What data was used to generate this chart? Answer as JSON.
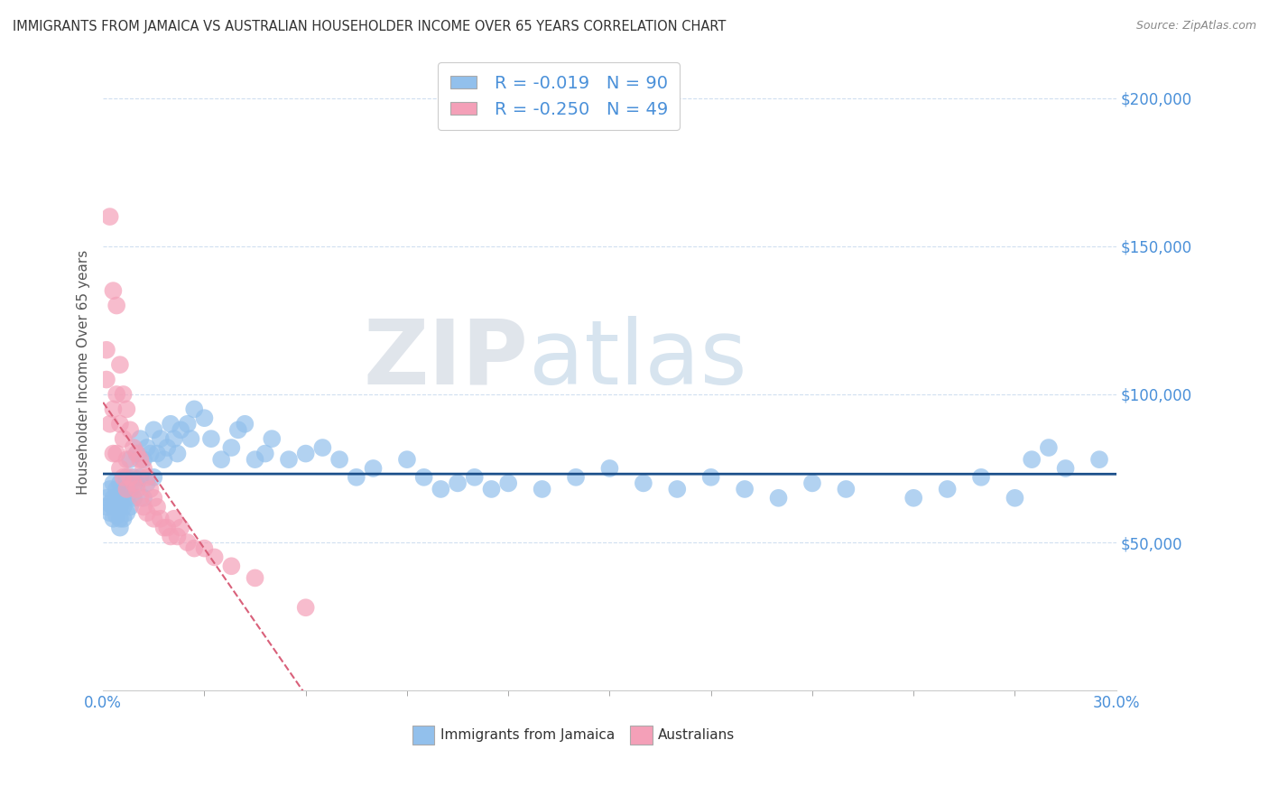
{
  "title": "IMMIGRANTS FROM JAMAICA VS AUSTRALIAN HOUSEHOLDER INCOME OVER 65 YEARS CORRELATION CHART",
  "source": "Source: ZipAtlas.com",
  "ylabel": "Householder Income Over 65 years",
  "watermark_zip": "ZIP",
  "watermark_atlas": "atlas",
  "legend_label1": "Immigrants from Jamaica",
  "legend_label2": "Australians",
  "legend_r1": "R = -0.019",
  "legend_n1": "N = 90",
  "legend_r2": "R = -0.250",
  "legend_n2": "N = 49",
  "blue_color": "#92C0EC",
  "pink_color": "#F4A0B8",
  "trendline_blue": "#1B4F8A",
  "trendline_pink": "#D9607A",
  "background_color": "#FFFFFF",
  "grid_color": "#D0DFF0",
  "yticks": [
    0,
    50000,
    100000,
    150000,
    200000
  ],
  "ytick_labels": [
    "",
    "$50,000",
    "$100,000",
    "$150,000",
    "$200,000"
  ],
  "xlim": [
    0.0,
    0.3
  ],
  "ylim": [
    0,
    215000
  ],
  "blue_x": [
    0.001,
    0.001,
    0.002,
    0.002,
    0.002,
    0.003,
    0.003,
    0.003,
    0.003,
    0.004,
    0.004,
    0.004,
    0.005,
    0.005,
    0.005,
    0.005,
    0.005,
    0.006,
    0.006,
    0.006,
    0.007,
    0.007,
    0.007,
    0.008,
    0.008,
    0.008,
    0.009,
    0.009,
    0.01,
    0.01,
    0.011,
    0.011,
    0.012,
    0.012,
    0.013,
    0.013,
    0.014,
    0.015,
    0.015,
    0.016,
    0.017,
    0.018,
    0.019,
    0.02,
    0.021,
    0.022,
    0.023,
    0.025,
    0.026,
    0.027,
    0.03,
    0.032,
    0.035,
    0.038,
    0.04,
    0.042,
    0.045,
    0.048,
    0.05,
    0.055,
    0.06,
    0.065,
    0.07,
    0.075,
    0.08,
    0.09,
    0.095,
    0.1,
    0.105,
    0.11,
    0.115,
    0.12,
    0.13,
    0.14,
    0.15,
    0.16,
    0.17,
    0.18,
    0.19,
    0.2,
    0.21,
    0.22,
    0.24,
    0.25,
    0.26,
    0.27,
    0.275,
    0.28,
    0.285,
    0.295
  ],
  "blue_y": [
    65000,
    62000,
    68000,
    63000,
    60000,
    70000,
    65000,
    62000,
    58000,
    68000,
    63000,
    59000,
    70000,
    65000,
    62000,
    58000,
    55000,
    67000,
    62000,
    58000,
    72000,
    65000,
    60000,
    78000,
    68000,
    62000,
    72000,
    65000,
    80000,
    70000,
    85000,
    72000,
    78000,
    65000,
    82000,
    70000,
    80000,
    88000,
    72000,
    80000,
    85000,
    78000,
    82000,
    90000,
    85000,
    80000,
    88000,
    90000,
    85000,
    95000,
    92000,
    85000,
    78000,
    82000,
    88000,
    90000,
    78000,
    80000,
    85000,
    78000,
    80000,
    82000,
    78000,
    72000,
    75000,
    78000,
    72000,
    68000,
    70000,
    72000,
    68000,
    70000,
    68000,
    72000,
    75000,
    70000,
    68000,
    72000,
    68000,
    65000,
    70000,
    68000,
    65000,
    68000,
    72000,
    65000,
    78000,
    82000,
    75000,
    78000
  ],
  "pink_x": [
    0.001,
    0.001,
    0.002,
    0.002,
    0.003,
    0.003,
    0.003,
    0.004,
    0.004,
    0.004,
    0.005,
    0.005,
    0.005,
    0.006,
    0.006,
    0.006,
    0.007,
    0.007,
    0.007,
    0.008,
    0.008,
    0.009,
    0.009,
    0.01,
    0.01,
    0.011,
    0.011,
    0.012,
    0.012,
    0.013,
    0.013,
    0.014,
    0.015,
    0.015,
    0.016,
    0.017,
    0.018,
    0.019,
    0.02,
    0.021,
    0.022,
    0.023,
    0.025,
    0.027,
    0.03,
    0.033,
    0.038,
    0.045,
    0.06
  ],
  "pink_y": [
    115000,
    105000,
    160000,
    90000,
    135000,
    95000,
    80000,
    130000,
    100000,
    80000,
    110000,
    90000,
    75000,
    100000,
    85000,
    72000,
    95000,
    78000,
    68000,
    88000,
    72000,
    82000,
    70000,
    80000,
    68000,
    78000,
    65000,
    75000,
    62000,
    72000,
    60000,
    68000,
    65000,
    58000,
    62000,
    58000,
    55000,
    55000,
    52000,
    58000,
    52000,
    55000,
    50000,
    48000,
    48000,
    45000,
    42000,
    38000,
    28000
  ]
}
